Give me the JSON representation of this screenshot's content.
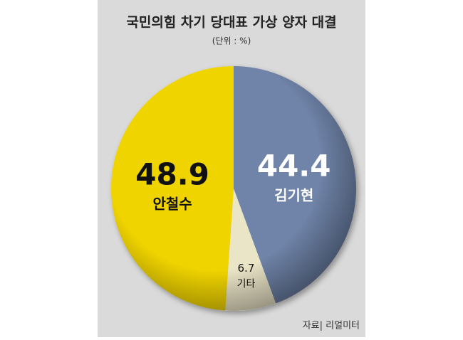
{
  "chart_data": {
    "type": "pie",
    "title": "국민의힘 차기 당대표 가상 양자 대결",
    "subtitle": "(단위 : %)",
    "source": "자료| 리얼미터",
    "categories": [
      "김기현",
      "기타",
      "안철수"
    ],
    "values": [
      44.4,
      6.7,
      48.9
    ],
    "colors": [
      "#6f83a8",
      "#ebe5c8",
      "#f0d400"
    ]
  }
}
